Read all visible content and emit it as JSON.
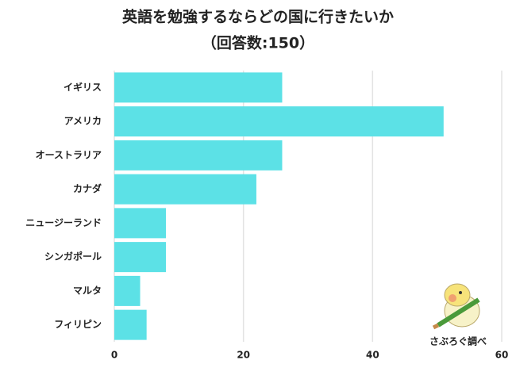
{
  "chart_data": {
    "type": "hbar",
    "title": "英語を勉強するならどの国に行きたいか",
    "subtitle": "（回答数:150）",
    "categories": [
      "イギリス",
      "アメリカ",
      "オーストラリア",
      "カナダ",
      "ニュージーランド",
      "シンガポール",
      "マルタ",
      "フィリピン"
    ],
    "values": [
      26,
      51,
      26,
      22,
      8,
      8,
      4,
      5
    ],
    "color": "#5ce1e6",
    "xlim": [
      0,
      60
    ],
    "xticks": [
      0,
      20,
      40,
      60
    ],
    "grid": true,
    "annotation": "さぶろぐ調べ"
  }
}
